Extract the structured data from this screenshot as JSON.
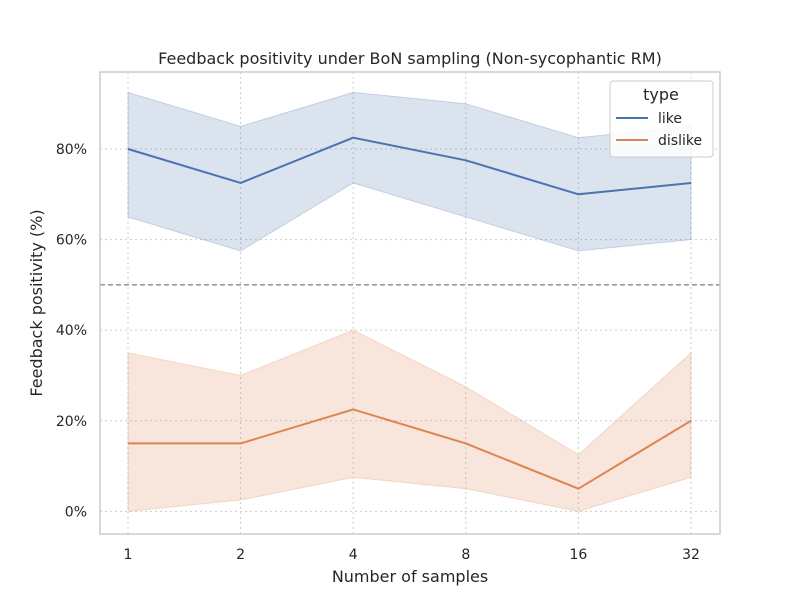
{
  "chart_data": {
    "type": "line",
    "title": "Feedback positivity under BoN sampling (Non-sycophantic RM)",
    "xlabel": "Number of samples",
    "ylabel": "Feedback positivity (%)",
    "categories": [
      "1",
      "2",
      "4",
      "8",
      "16",
      "32"
    ],
    "ylim": [
      -5,
      97
    ],
    "yticks": [
      0,
      20,
      40,
      60,
      80
    ],
    "ytick_labels": [
      "0%",
      "20%",
      "40%",
      "60%",
      "80%"
    ],
    "grid": true,
    "reference_line": 50,
    "legend": {
      "title": "type",
      "placement": "top-right"
    },
    "series": [
      {
        "name": "like",
        "color": "#4c72b0",
        "values": [
          80,
          72.5,
          82.5,
          77.5,
          70,
          72.5
        ],
        "ci_lower": [
          65,
          57.5,
          72.5,
          65,
          57.5,
          60
        ],
        "ci_upper": [
          92.5,
          85,
          92.5,
          90,
          82.5,
          85
        ]
      },
      {
        "name": "dislike",
        "color": "#dd8452",
        "values": [
          15,
          15,
          22.5,
          15,
          5,
          20
        ],
        "ci_lower": [
          0,
          2.5,
          7.5,
          5,
          0,
          7.5
        ],
        "ci_upper": [
          35,
          30,
          40,
          27.5,
          12.5,
          35
        ]
      }
    ]
  }
}
